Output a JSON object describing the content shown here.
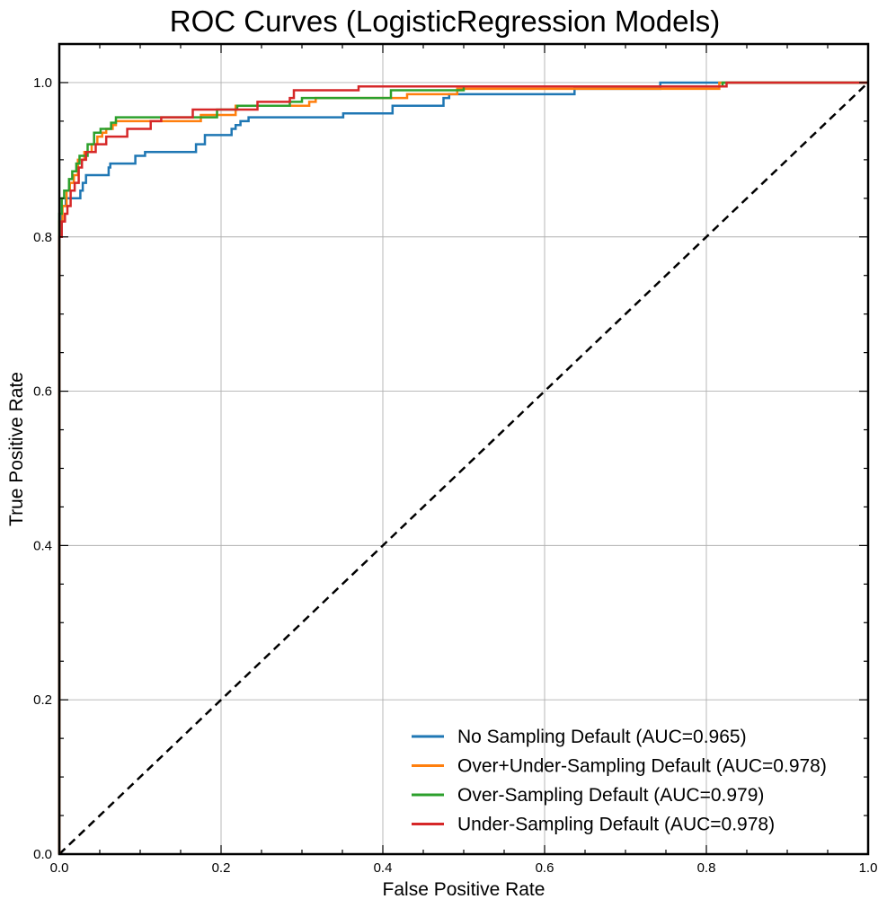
{
  "chart_data": {
    "type": "line",
    "title": "ROC Curves (LogisticRegression Models)",
    "xlabel": "False Positive Rate",
    "ylabel": "True Positive Rate",
    "xlim": [
      0,
      1
    ],
    "ylim": [
      0,
      1.05
    ],
    "x_ticks": [
      0.0,
      0.2,
      0.4,
      0.6,
      0.8,
      1.0
    ],
    "x_tick_labels": [
      "0.0",
      "0.2",
      "0.4",
      "0.6",
      "0.8",
      "1.0"
    ],
    "y_ticks": [
      0.0,
      0.2,
      0.4,
      0.6,
      0.8,
      1.0
    ],
    "y_tick_labels": [
      "0.0",
      "0.2",
      "0.4",
      "0.6",
      "0.8",
      "1.0"
    ],
    "grid": true,
    "legend_position": "lower-right",
    "baseline": {
      "x": [
        0,
        1
      ],
      "y": [
        0,
        1
      ],
      "color": "#000000",
      "style": "dashed"
    },
    "series": [
      {
        "name": "No Sampling Default (AUC=0.965)",
        "color": "#1f77b4",
        "x": [
          0,
          0,
          0.003,
          0.003,
          0.008,
          0.008,
          0.026,
          0.026,
          0.029,
          0.029,
          0.033,
          0.033,
          0.061,
          0.061,
          0.063,
          0.063,
          0.094,
          0.094,
          0.106,
          0.106,
          0.169,
          0.169,
          0.18,
          0.18,
          0.213,
          0.213,
          0.218,
          0.218,
          0.224,
          0.224,
          0.234,
          0.234,
          0.351,
          0.351,
          0.412,
          0.412,
          0.475,
          0.475,
          0.482,
          0.482,
          0.637,
          0.637,
          0.743,
          0.743,
          0.83,
          0.83,
          1.0
        ],
        "y": [
          0,
          0.8,
          0.8,
          0.84,
          0.84,
          0.85,
          0.85,
          0.86,
          0.86,
          0.87,
          0.87,
          0.88,
          0.88,
          0.89,
          0.89,
          0.895,
          0.895,
          0.905,
          0.905,
          0.91,
          0.91,
          0.92,
          0.92,
          0.932,
          0.932,
          0.94,
          0.94,
          0.945,
          0.945,
          0.95,
          0.95,
          0.955,
          0.955,
          0.96,
          0.96,
          0.97,
          0.97,
          0.98,
          0.98,
          0.985,
          0.985,
          0.992,
          0.992,
          1.0,
          1.0,
          1.0,
          1.0
        ]
      },
      {
        "name": "Over+Under-Sampling Default (AUC=0.978)",
        "color": "#ff7f0e",
        "x": [
          0,
          0,
          0.004,
          0.004,
          0.009,
          0.009,
          0.013,
          0.013,
          0.018,
          0.018,
          0.023,
          0.023,
          0.031,
          0.031,
          0.04,
          0.04,
          0.047,
          0.047,
          0.053,
          0.053,
          0.058,
          0.058,
          0.066,
          0.066,
          0.07,
          0.07,
          0.175,
          0.175,
          0.218,
          0.218,
          0.309,
          0.309,
          0.317,
          0.317,
          0.43,
          0.43,
          0.492,
          0.492,
          0.816,
          0.816,
          1.0
        ],
        "y": [
          0,
          0.82,
          0.82,
          0.84,
          0.84,
          0.86,
          0.86,
          0.87,
          0.87,
          0.88,
          0.88,
          0.9,
          0.9,
          0.91,
          0.91,
          0.92,
          0.92,
          0.93,
          0.93,
          0.935,
          0.935,
          0.94,
          0.94,
          0.945,
          0.945,
          0.95,
          0.95,
          0.958,
          0.958,
          0.97,
          0.97,
          0.975,
          0.975,
          0.98,
          0.98,
          0.985,
          0.985,
          0.992,
          0.992,
          1.0,
          1.0
        ]
      },
      {
        "name": "Over-Sampling Default (AUC=0.979)",
        "color": "#2ca02c",
        "x": [
          0,
          0,
          0.003,
          0.003,
          0.006,
          0.006,
          0.012,
          0.012,
          0.016,
          0.016,
          0.021,
          0.021,
          0.025,
          0.025,
          0.035,
          0.035,
          0.043,
          0.043,
          0.051,
          0.051,
          0.064,
          0.064,
          0.07,
          0.07,
          0.195,
          0.195,
          0.22,
          0.22,
          0.285,
          0.285,
          0.3,
          0.3,
          0.41,
          0.41,
          0.5,
          0.5,
          0.82,
          0.82,
          1.0
        ],
        "y": [
          0,
          0.83,
          0.83,
          0.85,
          0.85,
          0.86,
          0.86,
          0.875,
          0.875,
          0.885,
          0.885,
          0.895,
          0.895,
          0.905,
          0.905,
          0.92,
          0.92,
          0.935,
          0.935,
          0.94,
          0.94,
          0.948,
          0.948,
          0.955,
          0.955,
          0.965,
          0.965,
          0.97,
          0.97,
          0.975,
          0.975,
          0.98,
          0.98,
          0.99,
          0.99,
          0.995,
          0.995,
          1.0,
          1.0
        ]
      },
      {
        "name": "Under-Sampling Default (AUC=0.978)",
        "color": "#d62728",
        "x": [
          0,
          0,
          0.003,
          0.003,
          0.007,
          0.007,
          0.01,
          0.01,
          0.014,
          0.014,
          0.019,
          0.019,
          0.024,
          0.024,
          0.028,
          0.028,
          0.033,
          0.033,
          0.045,
          0.045,
          0.058,
          0.058,
          0.084,
          0.084,
          0.113,
          0.113,
          0.126,
          0.126,
          0.165,
          0.165,
          0.245,
          0.245,
          0.285,
          0.285,
          0.29,
          0.29,
          0.37,
          0.37,
          0.825,
          0.825,
          1.0
        ],
        "y": [
          0,
          0.8,
          0.8,
          0.82,
          0.82,
          0.83,
          0.83,
          0.84,
          0.84,
          0.86,
          0.86,
          0.87,
          0.87,
          0.89,
          0.89,
          0.9,
          0.9,
          0.91,
          0.91,
          0.92,
          0.92,
          0.93,
          0.93,
          0.94,
          0.94,
          0.95,
          0.95,
          0.955,
          0.955,
          0.965,
          0.965,
          0.975,
          0.975,
          0.98,
          0.98,
          0.99,
          0.99,
          0.995,
          0.995,
          1.0,
          1.0
        ]
      }
    ]
  }
}
